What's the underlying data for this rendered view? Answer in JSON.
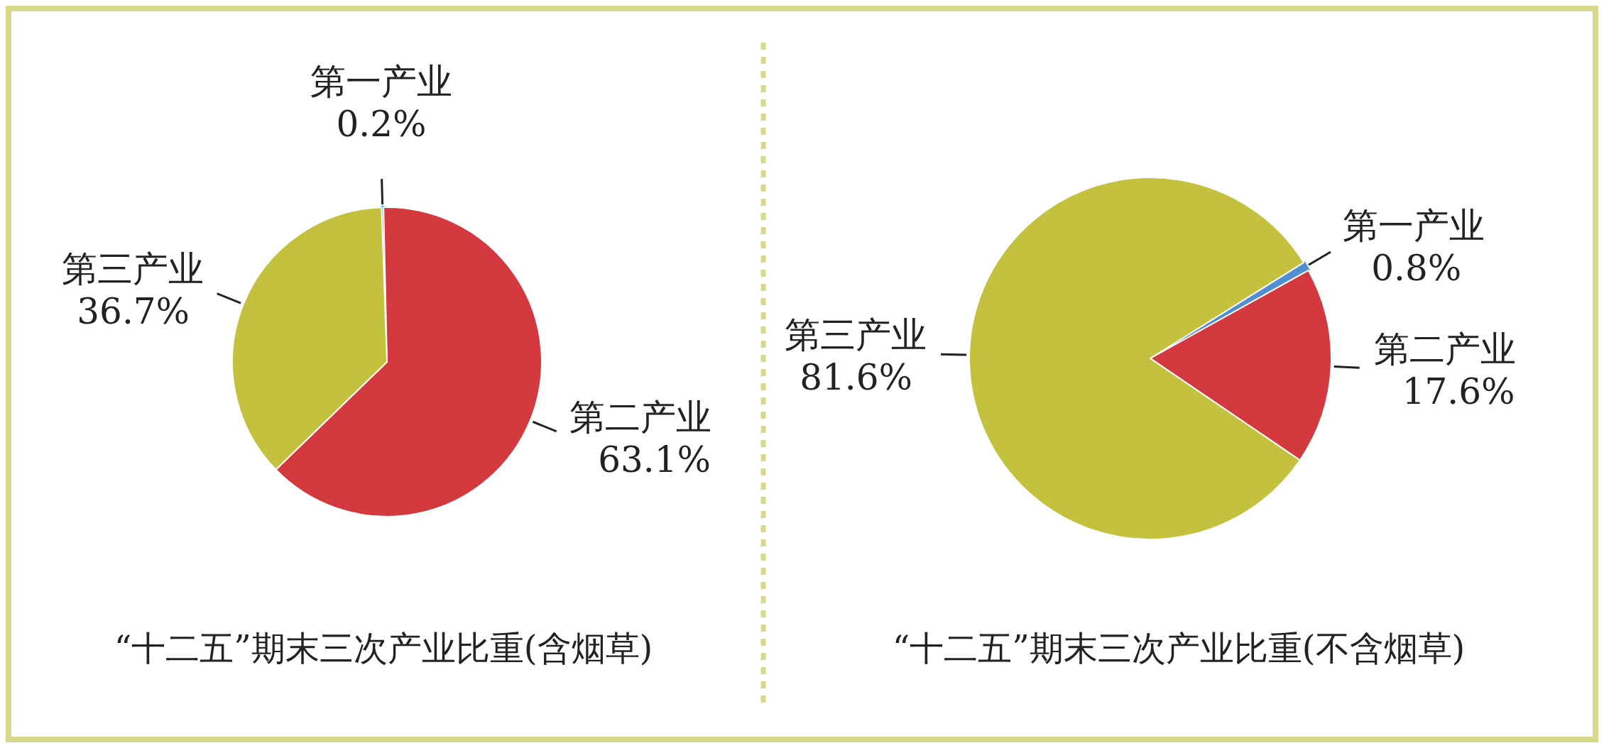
{
  "chart_data": [
    {
      "type": "pie",
      "title": "“十二五”期末三次产业比重(含烟草)",
      "categories": [
        "第一产业",
        "第二产业",
        "第三产业"
      ],
      "values": [
        0.2,
        63.1,
        36.7
      ],
      "value_labels": [
        "0.2%",
        "63.1%",
        "36.7%"
      ],
      "colors": [
        "#4f8fd2",
        "#d4393f",
        "#c3c13e"
      ]
    },
    {
      "type": "pie",
      "title": "“十二五”期末三次产业比重(不含烟草)",
      "categories": [
        "第一产业",
        "第二产业",
        "第三产业"
      ],
      "values": [
        0.8,
        17.6,
        81.6
      ],
      "value_labels": [
        "0.8%",
        "17.6%",
        "81.6%"
      ],
      "colors": [
        "#4f8fd2",
        "#d4393f",
        "#c3c13e"
      ]
    }
  ]
}
